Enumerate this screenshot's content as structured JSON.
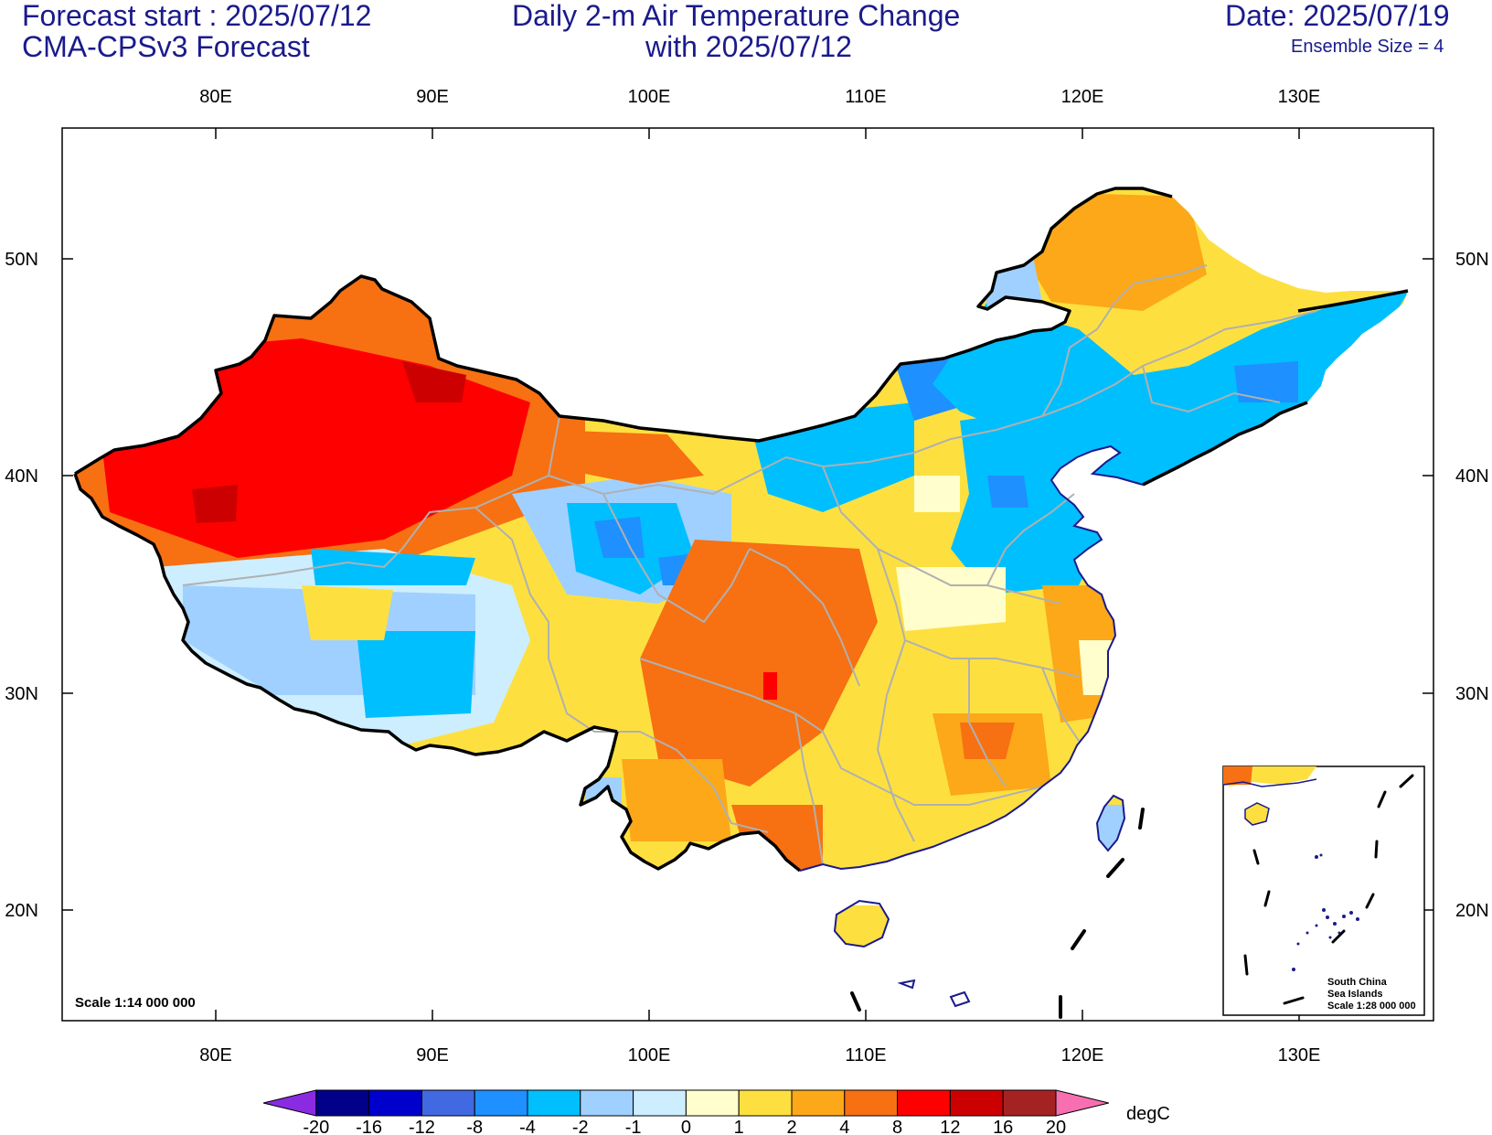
{
  "header": {
    "forecast_start": "Forecast start : 2025/07/12",
    "model": "CMA-CPSv3 Forecast",
    "title_line1": "Daily 2-m Air Temperature Change",
    "title_line2": "with 2025/07/12",
    "date": "Date: 2025/07/19",
    "ensemble": "Ensemble Size = 4"
  },
  "map": {
    "lon_ticks": [
      "80E",
      "90E",
      "100E",
      "110E",
      "120E",
      "130E"
    ],
    "lat_ticks": [
      "50N",
      "40N",
      "30N",
      "20N"
    ],
    "scale_main": "Scale 1:14 000 000",
    "inset_lines": [
      "South China",
      "Sea Islands",
      "Scale 1:28 000 000"
    ]
  },
  "colorbar": {
    "unit": "degC",
    "levels": [
      "-20",
      "-16",
      "-12",
      "-8",
      "-4",
      "-2",
      "-1",
      "0",
      "1",
      "2",
      "4",
      "8",
      "12",
      "16",
      "20"
    ],
    "colors": [
      "#8a2be2",
      "#00008b",
      "#0000cd",
      "#4169e1",
      "#1e90ff",
      "#00bfff",
      "#a0d0ff",
      "#cdeefe",
      "#fffecc",
      "#fde040",
      "#fca818",
      "#f77012",
      "#ff0000",
      "#cc0000",
      "#a52222",
      "#f76fb1"
    ]
  },
  "colors": {
    "title_blue": "#1a1a8c",
    "border_black": "#000000",
    "province_gray": "#b0b0b0",
    "coast_navy": "#1a1a8c"
  }
}
